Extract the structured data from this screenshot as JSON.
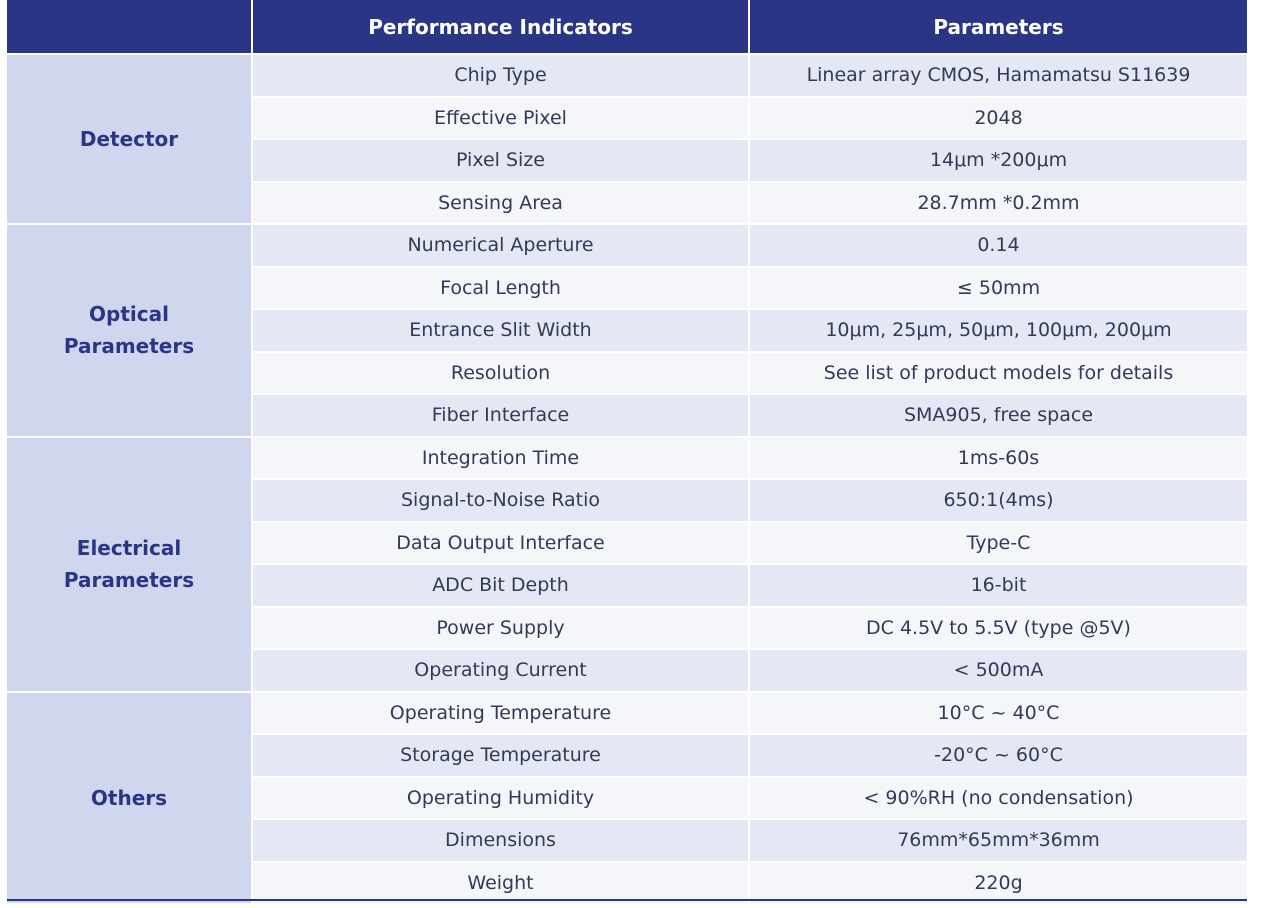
{
  "header": {
    "col1": "",
    "col2": "Performance Indicators",
    "col3": "Parameters"
  },
  "groups": [
    {
      "category": "Detector",
      "rows": [
        {
          "indicator": "Chip Type",
          "parameter": "Linear array CMOS, Hamamatsu S11639"
        },
        {
          "indicator": "Effective Pixel",
          "parameter": "2048"
        },
        {
          "indicator": "Pixel Size",
          "parameter": "14μm *200μm"
        },
        {
          "indicator": "Sensing Area",
          "parameter": "28.7mm *0.2mm"
        }
      ]
    },
    {
      "category": "Optical Parameters",
      "rows": [
        {
          "indicator": "Numerical Aperture",
          "parameter": "0.14"
        },
        {
          "indicator": "Focal Length",
          "parameter": "≤ 50mm"
        },
        {
          "indicator": "Entrance Slit Width",
          "parameter": "10μm, 25μm, 50μm, 100μm, 200μm"
        },
        {
          "indicator": "Resolution",
          "parameter": "See list of product models for details"
        },
        {
          "indicator": "Fiber Interface",
          "parameter": "SMA905, free space"
        }
      ]
    },
    {
      "category": "Electrical Parameters",
      "rows": [
        {
          "indicator": "Integration Time",
          "parameter": "1ms-60s"
        },
        {
          "indicator": "Signal-to-Noise Ratio",
          "parameter": "650:1(4ms)"
        },
        {
          "indicator": "Data Output Interface",
          "parameter": "Type-C"
        },
        {
          "indicator": "ADC Bit Depth",
          "parameter": "16-bit"
        },
        {
          "indicator": "Power Supply",
          "parameter": "DC 4.5V to 5.5V (type @5V)"
        },
        {
          "indicator": "Operating Current",
          "parameter": "< 500mA"
        }
      ]
    },
    {
      "category": "Others",
      "rows": [
        {
          "indicator": "Operating Temperature",
          "parameter": "10°C ~ 40°C"
        },
        {
          "indicator": "Storage Temperature",
          "parameter": "-20°C ~ 60°C"
        },
        {
          "indicator": "Operating Humidity",
          "parameter": "< 90%RH (no condensation)"
        },
        {
          "indicator": "Dimensions",
          "parameter": "76mm*65mm*36mm"
        },
        {
          "indicator": "Weight",
          "parameter": "220g"
        }
      ]
    }
  ]
}
